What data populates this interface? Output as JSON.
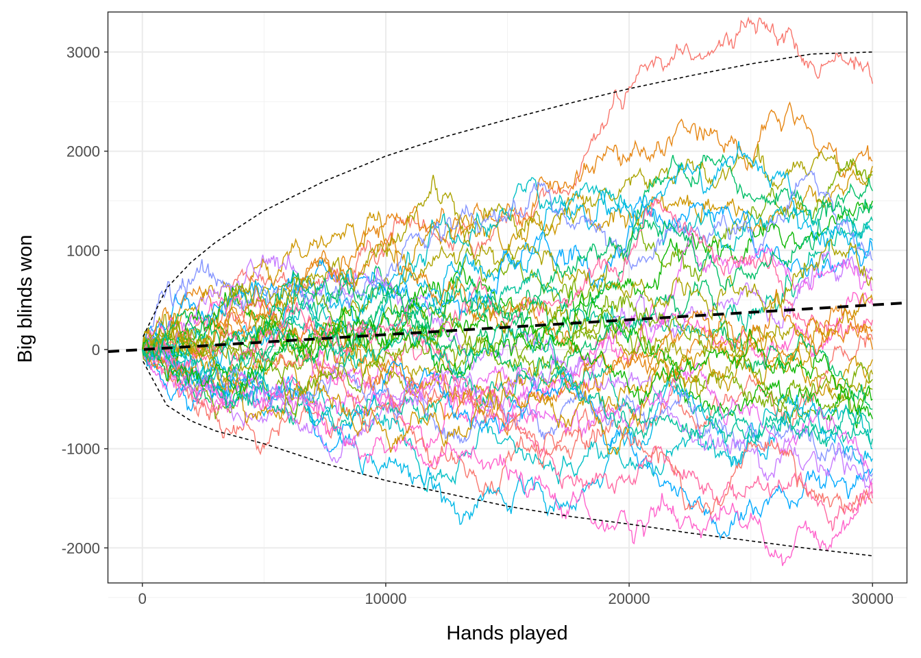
{
  "chart_data": {
    "type": "line",
    "title": "",
    "xlabel": "Hands played",
    "ylabel": "Big blinds won",
    "xlim": [
      -1400,
      31400
    ],
    "ylim": [
      -2350,
      3400
    ],
    "x_ticks": [
      0,
      10000,
      20000,
      30000
    ],
    "y_ticks": [
      -2000,
      -1000,
      0,
      1000,
      2000,
      3000
    ],
    "x_tick_labels": [
      "0",
      "10000",
      "20000",
      "30000"
    ],
    "y_tick_labels": [
      "-2000",
      "-1000",
      "0",
      "1000",
      "2000",
      "3000"
    ],
    "grid": true,
    "legend": "none",
    "theme": "bw",
    "simulation": {
      "n_paths": 40,
      "hands": 30000,
      "winrate_bb_per_hand": 0.015,
      "sd_bb_per_hand": 10,
      "note_values_approximate": true
    },
    "expected_line": {
      "style": "thick-dashed",
      "color": "#000000",
      "x": [
        -1400,
        31400
      ],
      "y": [
        -21,
        471
      ]
    },
    "upper_bound": {
      "style": "thin-dashed",
      "color": "#000000",
      "x": [
        30,
        1000,
        2000,
        3000,
        5000,
        7500,
        10000,
        12500,
        15000,
        17500,
        20000,
        22500,
        25000,
        27500,
        30000
      ],
      "y": [
        130,
        620,
        880,
        1080,
        1400,
        1700,
        1950,
        2150,
        2320,
        2480,
        2630,
        2760,
        2880,
        2980,
        3000
      ]
    },
    "lower_bound": {
      "style": "thin-dashed",
      "color": "#000000",
      "x": [
        30,
        1000,
        2000,
        3000,
        5000,
        7500,
        10000,
        12500,
        15000,
        17500,
        20000,
        22500,
        25000,
        27500,
        30000
      ],
      "y": [
        -120,
        -560,
        -720,
        -820,
        -950,
        -1150,
        -1320,
        -1450,
        -1580,
        -1680,
        -1760,
        -1850,
        -1930,
        -2010,
        -2080
      ]
    },
    "paths_summary": {
      "final_values_approx": [
        2680,
        1900,
        1850,
        1800,
        1760,
        1500,
        1450,
        1300,
        1200,
        1100,
        1000,
        900,
        800,
        600,
        450,
        300,
        100,
        0,
        -100,
        -250,
        -400,
        -500,
        -600,
        -800,
        -1000,
        -1100,
        -1200,
        -1250,
        -1300,
        -1350,
        -1450,
        -1500,
        -1550,
        200,
        500,
        700,
        -300,
        -700,
        1600,
        -900
      ]
    },
    "palette": [
      "#F8766D",
      "#E68613",
      "#CD9600",
      "#ABA300",
      "#7CAE00",
      "#0CB702",
      "#00BE67",
      "#00C19A",
      "#00BFC4",
      "#00B8E7",
      "#00A9FF",
      "#8494FF",
      "#C77CFF",
      "#ED68ED",
      "#FF61CC",
      "#FF68A1"
    ]
  }
}
